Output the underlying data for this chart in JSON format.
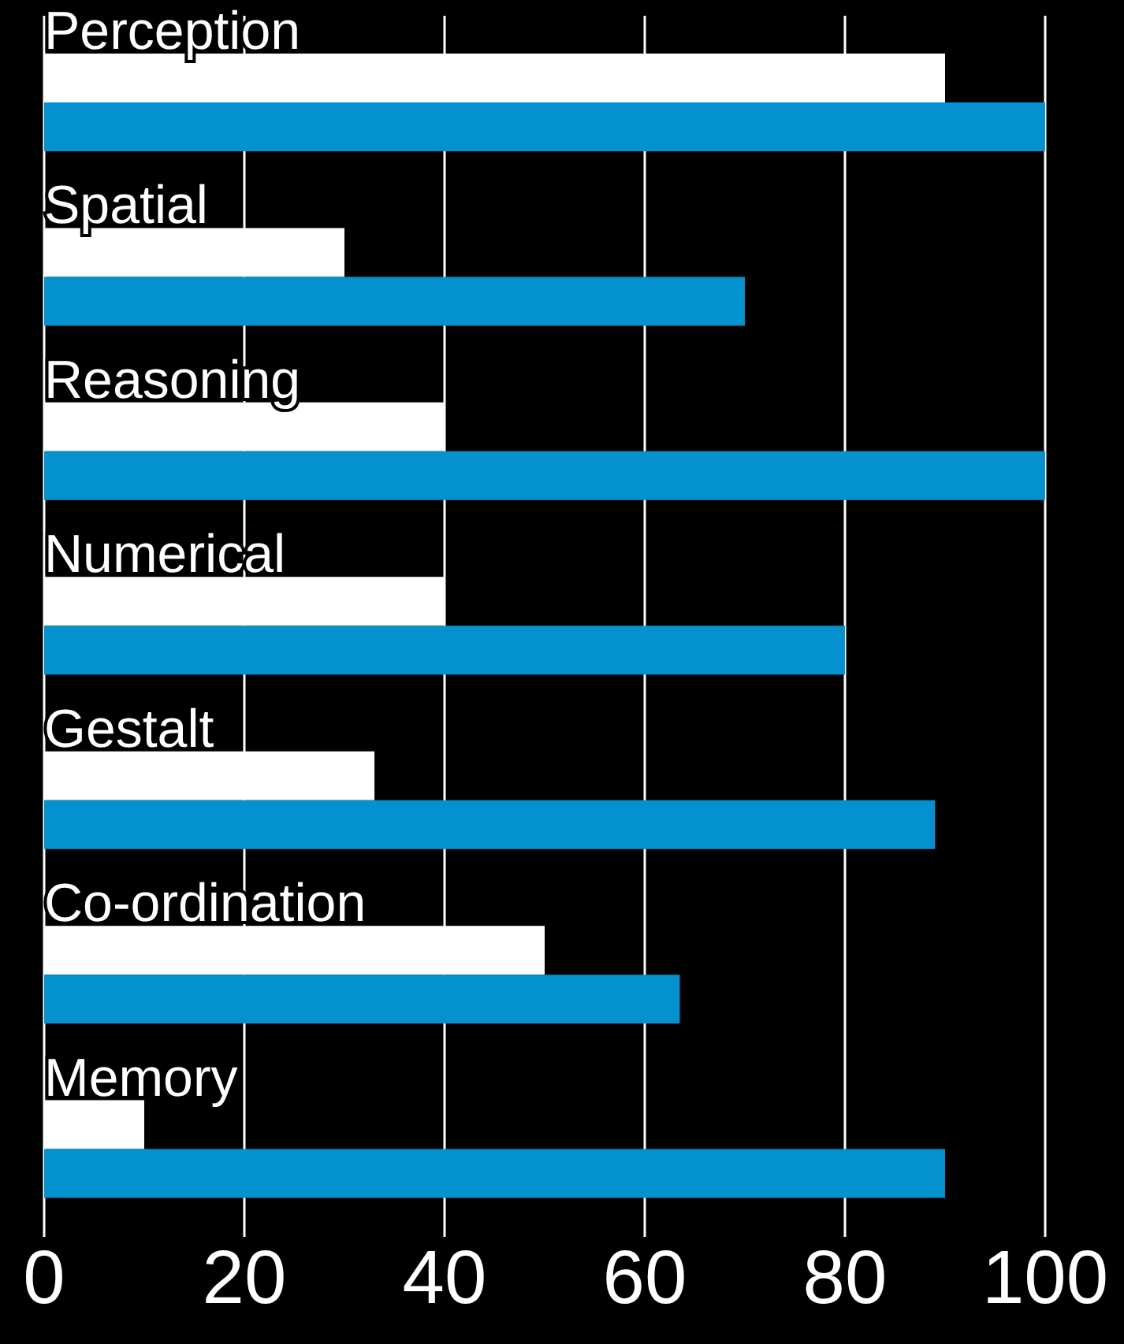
{
  "chart_data": {
    "type": "bar",
    "orientation": "horizontal",
    "categories": [
      "Perception",
      "Spatial",
      "Reasoning",
      "Numerical",
      "Gestalt",
      "Co-ordination",
      "Memory"
    ],
    "series": [
      {
        "color": "#ffffff",
        "values": [
          90,
          30,
          40,
          40,
          33,
          50,
          10
        ]
      },
      {
        "color": "#0392cf",
        "values": [
          100,
          70,
          100,
          80,
          89,
          63.5,
          90
        ]
      }
    ],
    "xlim": [
      0,
      100
    ],
    "xticks": [
      0,
      20,
      40,
      60,
      80,
      100
    ],
    "grid": "x",
    "legend": false
  }
}
